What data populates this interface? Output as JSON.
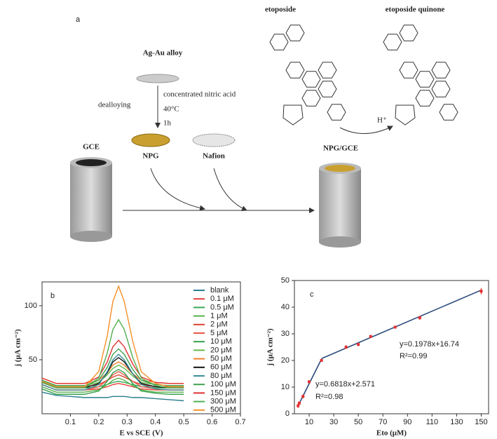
{
  "schematic": {
    "panel_label": "a",
    "etoposide": "etoposide",
    "quinone": "etoposide quinone",
    "alloy": "Ag-Au alloy",
    "acid": "concentrated nitric acid",
    "temperature": "40°C",
    "time": "1h",
    "dealloying": "dealloying",
    "gce": "GCE",
    "npg": "NPG",
    "nafion": "Nafion",
    "product": "NPG/GCE",
    "proton": "H⁺"
  },
  "chart_data": [
    {
      "type": "line",
      "panel_label": "b",
      "x_label": "E vs SCE (V)",
      "y_label": "j (μA cm⁻²)",
      "xlim": [
        0,
        0.7
      ],
      "ylim": [
        0,
        122
      ],
      "xticks": [
        0.1,
        0.2,
        0.3,
        0.4,
        0.5,
        0.6,
        0.7
      ],
      "yticks": [
        50,
        100
      ],
      "x": [
        0.0,
        0.05,
        0.1,
        0.15,
        0.2,
        0.23,
        0.25,
        0.27,
        0.29,
        0.32,
        0.35,
        0.4,
        0.45,
        0.5
      ],
      "series": [
        {
          "name": "blank",
          "color": "#2a7f8f",
          "values": [
            20,
            17,
            16,
            15,
            15,
            15,
            16,
            16,
            16,
            15,
            15,
            14,
            13,
            12
          ]
        },
        {
          "name": "0.1 μM",
          "color": "#e8403a",
          "values": [
            27,
            22,
            22,
            22,
            23,
            25,
            27,
            28,
            27,
            25,
            23,
            22,
            22,
            22
          ]
        },
        {
          "name": "0.5 μM",
          "color": "#3aa85a",
          "values": [
            29,
            24,
            24,
            24,
            25,
            27,
            29,
            30,
            29,
            27,
            25,
            24,
            24,
            24
          ]
        },
        {
          "name": "1 μM",
          "color": "#55b04a",
          "values": [
            25,
            20,
            20,
            20,
            22,
            27,
            31,
            33,
            31,
            26,
            22,
            20,
            20,
            20
          ]
        },
        {
          "name": "2 μM",
          "color": "#e04030",
          "values": [
            30,
            25,
            25,
            25,
            27,
            31,
            34,
            36,
            34,
            30,
            27,
            25,
            25,
            25
          ]
        },
        {
          "name": "5 μM",
          "color": "#e85a4a",
          "values": [
            27,
            22,
            22,
            22,
            25,
            31,
            36,
            39,
            36,
            30,
            25,
            23,
            22,
            22
          ]
        },
        {
          "name": "10 μM",
          "color": "#33a04a",
          "values": [
            23,
            18,
            18,
            18,
            21,
            30,
            38,
            41,
            38,
            28,
            21,
            19,
            18,
            18
          ]
        },
        {
          "name": "20 μM",
          "color": "#66b84a",
          "values": [
            31,
            26,
            26,
            26,
            29,
            36,
            42,
            45,
            42,
            35,
            29,
            27,
            26,
            26
          ]
        },
        {
          "name": "50 μM",
          "color": "#f08030",
          "values": [
            33,
            28,
            28,
            28,
            31,
            38,
            45,
            48,
            45,
            37,
            31,
            29,
            28,
            28
          ]
        },
        {
          "name": "60 μM",
          "color": "#111111",
          "values": [
            29,
            24,
            24,
            24,
            28,
            38,
            48,
            52,
            48,
            37,
            28,
            25,
            24,
            24
          ]
        },
        {
          "name": "80 μM",
          "color": "#3a8f9a",
          "values": [
            27,
            22,
            22,
            22,
            27,
            39,
            50,
            55,
            50,
            37,
            27,
            23,
            22,
            22
          ]
        },
        {
          "name": "100 μM",
          "color": "#40a050",
          "values": [
            31,
            26,
            26,
            26,
            31,
            43,
            55,
            60,
            55,
            41,
            31,
            27,
            26,
            26
          ]
        },
        {
          "name": "150 μM",
          "color": "#e03030",
          "values": [
            33,
            28,
            28,
            28,
            34,
            48,
            62,
            68,
            62,
            46,
            34,
            29,
            28,
            28
          ]
        },
        {
          "name": "300 μM",
          "color": "#50b050",
          "values": [
            29,
            24,
            24,
            24,
            33,
            56,
            78,
            87,
            78,
            52,
            33,
            26,
            24,
            24
          ]
        },
        {
          "name": "500 μM",
          "color": "#f5902a",
          "values": [
            30,
            25,
            25,
            25,
            39,
            72,
            104,
            118,
            104,
            67,
            39,
            28,
            25,
            25
          ]
        }
      ]
    },
    {
      "type": "scatter",
      "panel_label": "c",
      "x_label": "Eto (μM)",
      "y_label": "j (μA cm⁻²)",
      "xlim": [
        -2,
        156
      ],
      "ylim": [
        0,
        50
      ],
      "xticks": [
        10,
        30,
        50,
        70,
        90,
        110,
        130,
        150
      ],
      "yticks": [
        0,
        10,
        20,
        30,
        40,
        50
      ],
      "color": "#e53030",
      "line_color": "#2a4a7a",
      "x": [
        1,
        2,
        5,
        10,
        20,
        40,
        50,
        60,
        80,
        100,
        150
      ],
      "values": [
        3,
        4,
        6.5,
        12,
        20,
        25,
        26,
        29,
        32.5,
        36,
        46
      ],
      "errors": [
        0.8,
        0.6,
        0.7,
        0.6,
        0.5,
        0.7,
        0.6,
        0.6,
        0.5,
        0.7,
        1.2
      ],
      "fit_lines": [
        {
          "x": [
            1,
            20
          ],
          "values": [
            3,
            20.5
          ]
        },
        {
          "x": [
            20,
            150
          ],
          "values": [
            20.7,
            46.4
          ]
        }
      ],
      "annotations": [
        "y=0.6818x+2.571",
        "R²=0.98",
        "y=0.1978x+16.74",
        "R²=0.99"
      ]
    }
  ]
}
